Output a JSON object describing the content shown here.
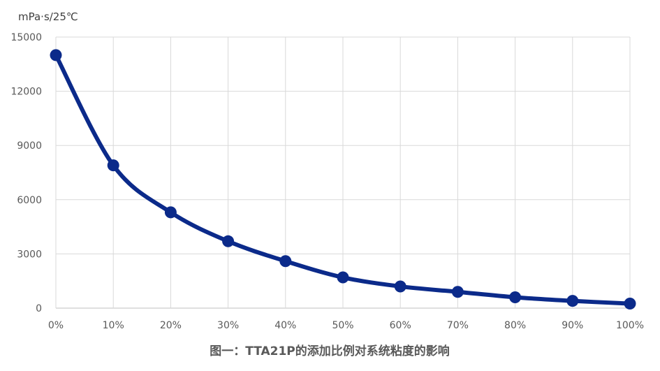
{
  "chart_data": {
    "type": "line",
    "title": "图一：TTA21P的添加比例对系统粘度的影响",
    "ylabel": "mPa·s/25℃",
    "xlabel": "",
    "categories": [
      "0%",
      "10%",
      "20%",
      "30%",
      "40%",
      "50%",
      "60%",
      "70%",
      "80%",
      "90%",
      "100%"
    ],
    "series": [
      {
        "values": [
          14000,
          7900,
          5300,
          3700,
          2600,
          1700,
          1200,
          900,
          600,
          400,
          250
        ]
      }
    ],
    "ylim": [
      0,
      15000
    ],
    "yticks": [
      "0",
      "3000",
      "6000",
      "9000",
      "12000",
      "15000"
    ],
    "grid": true,
    "legend": "none",
    "colors": {
      "series": "#0b2a8a",
      "grid": "#d9d9d9",
      "text": "#595959"
    }
  }
}
